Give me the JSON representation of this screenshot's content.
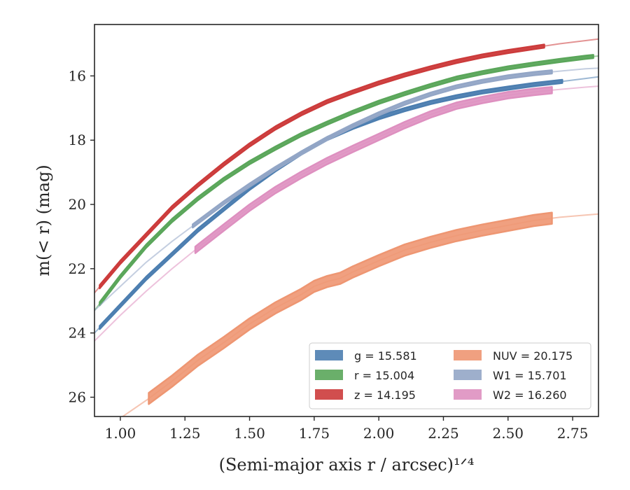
{
  "chart_data": {
    "type": "line",
    "xlabel": "(Semi-major axis r / arcsec)¹ᐟ⁴",
    "ylabel": "m(< r) (mag)",
    "xlim": [
      0.9,
      2.85
    ],
    "ylim": [
      26.6,
      14.4
    ],
    "y_inverted": true,
    "grid": false,
    "legend_position": "lower-right",
    "legend_columns": 2,
    "x_ticks": [
      "1.00",
      "1.25",
      "1.50",
      "1.75",
      "2.00",
      "2.25",
      "2.50",
      "2.75"
    ],
    "y_ticks": [
      "16",
      "18",
      "20",
      "22",
      "24",
      "26"
    ],
    "series": [
      {
        "label": "g = 15.581",
        "color": "#4c7eb0",
        "band_range": [
          0.92,
          2.71
        ],
        "band_width": 0.1,
        "x": [
          0.9,
          1.0,
          1.1,
          1.2,
          1.3,
          1.4,
          1.5,
          1.6,
          1.7,
          1.8,
          1.9,
          2.0,
          2.1,
          2.2,
          2.3,
          2.4,
          2.5,
          2.6,
          2.7,
          2.8,
          2.85
        ],
        "y": [
          24.0,
          23.15,
          22.3,
          21.55,
          20.8,
          20.15,
          19.5,
          18.92,
          18.4,
          17.95,
          17.6,
          17.3,
          17.05,
          16.83,
          16.65,
          16.5,
          16.38,
          16.27,
          16.18,
          16.08,
          16.03
        ]
      },
      {
        "label": "r = 15.004",
        "color": "#5aa65a",
        "band_range": [
          0.92,
          2.83
        ],
        "band_width": 0.1,
        "x": [
          0.9,
          1.0,
          1.1,
          1.2,
          1.3,
          1.4,
          1.5,
          1.6,
          1.7,
          1.8,
          1.9,
          2.0,
          2.1,
          2.2,
          2.3,
          2.4,
          2.5,
          2.6,
          2.7,
          2.8,
          2.85
        ],
        "y": [
          23.3,
          22.25,
          21.3,
          20.5,
          19.82,
          19.22,
          18.7,
          18.25,
          17.83,
          17.47,
          17.13,
          16.82,
          16.55,
          16.3,
          16.07,
          15.9,
          15.75,
          15.63,
          15.52,
          15.42,
          15.38
        ]
      },
      {
        "label": "z = 14.195",
        "color": "#cc3b3b",
        "band_range": [
          0.92,
          2.64
        ],
        "band_width": 0.1,
        "x": [
          0.9,
          1.0,
          1.1,
          1.2,
          1.3,
          1.4,
          1.5,
          1.6,
          1.7,
          1.8,
          1.9,
          2.0,
          2.1,
          2.2,
          2.3,
          2.4,
          2.5,
          2.6,
          2.7,
          2.8,
          2.85
        ],
        "y": [
          22.75,
          21.8,
          20.95,
          20.1,
          19.4,
          18.75,
          18.15,
          17.62,
          17.18,
          16.8,
          16.5,
          16.22,
          15.97,
          15.75,
          15.55,
          15.38,
          15.24,
          15.12,
          15.0,
          14.9,
          14.85
        ]
      },
      {
        "label": "NUV = 20.175",
        "color": "#ee9672",
        "band_range": [
          1.11,
          2.67
        ],
        "band_width": 0.35,
        "x": [
          0.9,
          1.0,
          1.1,
          1.2,
          1.3,
          1.4,
          1.5,
          1.6,
          1.7,
          1.75,
          1.8,
          1.85,
          1.9,
          2.0,
          2.1,
          2.2,
          2.3,
          2.4,
          2.5,
          2.6,
          2.7,
          2.8,
          2.85
        ],
        "y": [
          27.3,
          26.65,
          26.1,
          25.5,
          24.85,
          24.3,
          23.72,
          23.22,
          22.8,
          22.55,
          22.4,
          22.3,
          22.1,
          21.75,
          21.42,
          21.18,
          20.97,
          20.8,
          20.65,
          20.5,
          20.4,
          20.33,
          20.3
        ]
      },
      {
        "label": "W1 = 15.701",
        "color": "#93a6c6",
        "band_range": [
          1.28,
          2.67
        ],
        "band_width": 0.1,
        "x": [
          0.9,
          1.0,
          1.1,
          1.2,
          1.3,
          1.4,
          1.5,
          1.6,
          1.7,
          1.8,
          1.9,
          2.0,
          2.1,
          2.2,
          2.3,
          2.4,
          2.5,
          2.6,
          2.7,
          2.8,
          2.85
        ],
        "y": [
          23.3,
          22.55,
          21.8,
          21.15,
          20.55,
          19.95,
          19.4,
          18.88,
          18.4,
          17.95,
          17.55,
          17.18,
          16.85,
          16.57,
          16.34,
          16.17,
          16.03,
          15.93,
          15.85,
          15.78,
          15.76
        ]
      },
      {
        "label": "W2 = 16.260",
        "color": "#de90c0",
        "band_range": [
          1.29,
          2.67
        ],
        "band_width": 0.2,
        "x": [
          0.9,
          1.0,
          1.1,
          1.2,
          1.3,
          1.4,
          1.5,
          1.6,
          1.7,
          1.8,
          1.9,
          2.0,
          2.1,
          2.2,
          2.3,
          2.4,
          2.5,
          2.6,
          2.7,
          2.8,
          2.85
        ],
        "y": [
          24.25,
          23.45,
          22.7,
          22.0,
          21.35,
          20.72,
          20.1,
          19.55,
          19.08,
          18.65,
          18.27,
          17.9,
          17.53,
          17.2,
          16.93,
          16.75,
          16.6,
          16.5,
          16.42,
          16.35,
          16.32
        ]
      }
    ]
  }
}
